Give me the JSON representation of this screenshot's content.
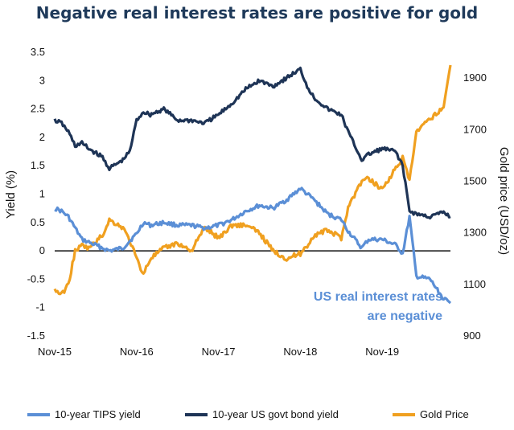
{
  "title": "Negative real interest rates are positive for gold",
  "chart_data": {
    "type": "line",
    "title": "Negative real interest rates are positive for gold",
    "x_ticks": [
      "Nov-15",
      "Nov-16",
      "Nov-17",
      "Nov-18",
      "Nov-19"
    ],
    "y_left": {
      "label": "Yield (%)",
      "ticks": [
        "3.5",
        "3",
        "2.5",
        "2",
        "1.5",
        "1",
        "0.5",
        "0",
        "-0.5",
        "-1",
        "-1.5"
      ],
      "lim": [
        -1.5,
        3.5
      ]
    },
    "y_right": {
      "label": "Gold price (USD/oz)",
      "ticks": [
        "1900",
        "1700",
        "1500",
        "1300",
        "1100",
        "900"
      ],
      "lim": [
        900,
        2000
      ]
    },
    "annotation": [
      "US real interest rates",
      "are negative"
    ],
    "series": [
      {
        "name": "10-year TIPS yield",
        "axis": "left",
        "color": "#5b8fd6",
        "x": [
          "2015-11",
          "2015-12",
          "2016-01",
          "2016-02",
          "2016-03",
          "2016-04",
          "2016-06",
          "2016-07",
          "2016-09",
          "2016-11",
          "2016-12",
          "2017-01",
          "2017-03",
          "2017-05",
          "2017-07",
          "2017-09",
          "2017-11",
          "2018-01",
          "2018-03",
          "2018-05",
          "2018-07",
          "2018-09",
          "2018-11",
          "2018-12",
          "2019-01",
          "2019-03",
          "2019-05",
          "2019-06",
          "2019-08",
          "2019-09",
          "2019-11",
          "2020-01",
          "2020-02",
          "2020-03",
          "2020-04",
          "2020-06",
          "2020-08",
          "2020-09"
        ],
        "y": [
          0.75,
          0.7,
          0.6,
          0.4,
          0.2,
          0.15,
          0.05,
          0.0,
          0.05,
          0.3,
          0.5,
          0.45,
          0.5,
          0.45,
          0.45,
          0.4,
          0.45,
          0.55,
          0.7,
          0.8,
          0.75,
          0.9,
          1.1,
          1.0,
          0.9,
          0.65,
          0.55,
          0.35,
          0.05,
          0.2,
          0.2,
          0.1,
          -0.05,
          0.6,
          -0.45,
          -0.5,
          -0.85,
          -0.92
        ]
      },
      {
        "name": "10-year US govt bond yield",
        "axis": "left",
        "color": "#1e3456",
        "x": [
          "2015-11",
          "2015-12",
          "2016-01",
          "2016-02",
          "2016-03",
          "2016-04",
          "2016-06",
          "2016-07",
          "2016-09",
          "2016-10",
          "2016-11",
          "2016-12",
          "2017-01",
          "2017-03",
          "2017-05",
          "2017-07",
          "2017-09",
          "2017-11",
          "2018-01",
          "2018-03",
          "2018-05",
          "2018-07",
          "2018-09",
          "2018-11",
          "2018-12",
          "2019-01",
          "2019-03",
          "2019-05",
          "2019-06",
          "2019-08",
          "2019-09",
          "2019-11",
          "2020-01",
          "2020-02",
          "2020-03",
          "2020-04",
          "2020-06",
          "2020-08",
          "2020-09"
        ],
        "y": [
          2.3,
          2.25,
          2.1,
          1.85,
          1.9,
          1.8,
          1.65,
          1.45,
          1.6,
          1.75,
          2.3,
          2.45,
          2.4,
          2.5,
          2.3,
          2.3,
          2.25,
          2.4,
          2.6,
          2.85,
          3.0,
          2.9,
          3.05,
          3.2,
          2.9,
          2.7,
          2.5,
          2.4,
          2.1,
          1.6,
          1.7,
          1.8,
          1.75,
          1.5,
          0.7,
          0.65,
          0.6,
          0.68,
          0.6
        ]
      },
      {
        "name": "Gold Price",
        "axis": "right",
        "color": "#f0a020",
        "x": [
          "2015-11",
          "2015-12",
          "2016-01",
          "2016-02",
          "2016-03",
          "2016-04",
          "2016-06",
          "2016-07",
          "2016-09",
          "2016-10",
          "2016-11",
          "2016-12",
          "2017-01",
          "2017-03",
          "2017-05",
          "2017-07",
          "2017-09",
          "2017-11",
          "2018-01",
          "2018-03",
          "2018-05",
          "2018-07",
          "2018-09",
          "2018-11",
          "2018-12",
          "2019-01",
          "2019-03",
          "2019-05",
          "2019-06",
          "2019-08",
          "2019-09",
          "2019-11",
          "2020-01",
          "2020-02",
          "2020-03",
          "2020-04",
          "2020-06",
          "2020-08",
          "2020-09"
        ],
        "y": [
          1080,
          1060,
          1100,
          1230,
          1250,
          1240,
          1290,
          1350,
          1320,
          1270,
          1200,
          1140,
          1200,
          1240,
          1260,
          1230,
          1320,
          1280,
          1330,
          1330,
          1300,
          1230,
          1200,
          1220,
          1250,
          1290,
          1310,
          1280,
          1400,
          1500,
          1510,
          1470,
          1550,
          1590,
          1500,
          1690,
          1740,
          1790,
          1950
        ]
      }
    ]
  }
}
